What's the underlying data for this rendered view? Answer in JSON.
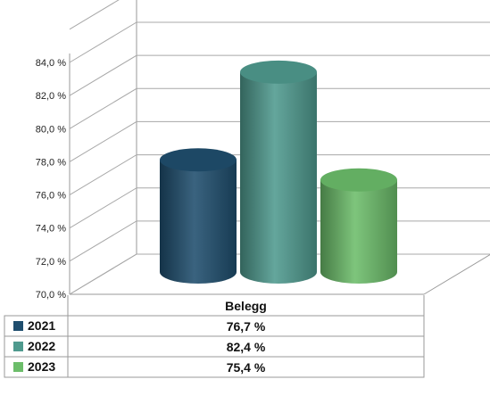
{
  "chart_data": {
    "type": "bar",
    "style": "3d-cylinder",
    "categories": [
      "Belegg"
    ],
    "series": [
      {
        "name": "2021",
        "values": [
          76.7
        ],
        "color": "#1f4e6e",
        "label": "76,7 %"
      },
      {
        "name": "2022",
        "values": [
          82.4
        ],
        "color": "#4f9a8e",
        "label": "82,4 %"
      },
      {
        "name": "2023",
        "values": [
          75.4
        ],
        "color": "#6cbd6a",
        "label": "75,4 %"
      }
    ],
    "ylim": [
      70,
      84
    ],
    "y_ticks": [
      {
        "value": 70,
        "label": "70,0 %"
      },
      {
        "value": 72,
        "label": "72,0 %"
      },
      {
        "value": 74,
        "label": "74,0 %"
      },
      {
        "value": 76,
        "label": "76,0 %"
      },
      {
        "value": 78,
        "label": "78,0 %"
      },
      {
        "value": 80,
        "label": "80,0 %"
      },
      {
        "value": 82,
        "label": "82,0 %"
      },
      {
        "value": 84,
        "label": "84,0 %"
      }
    ],
    "grid": true,
    "legend": "data-table-below"
  }
}
